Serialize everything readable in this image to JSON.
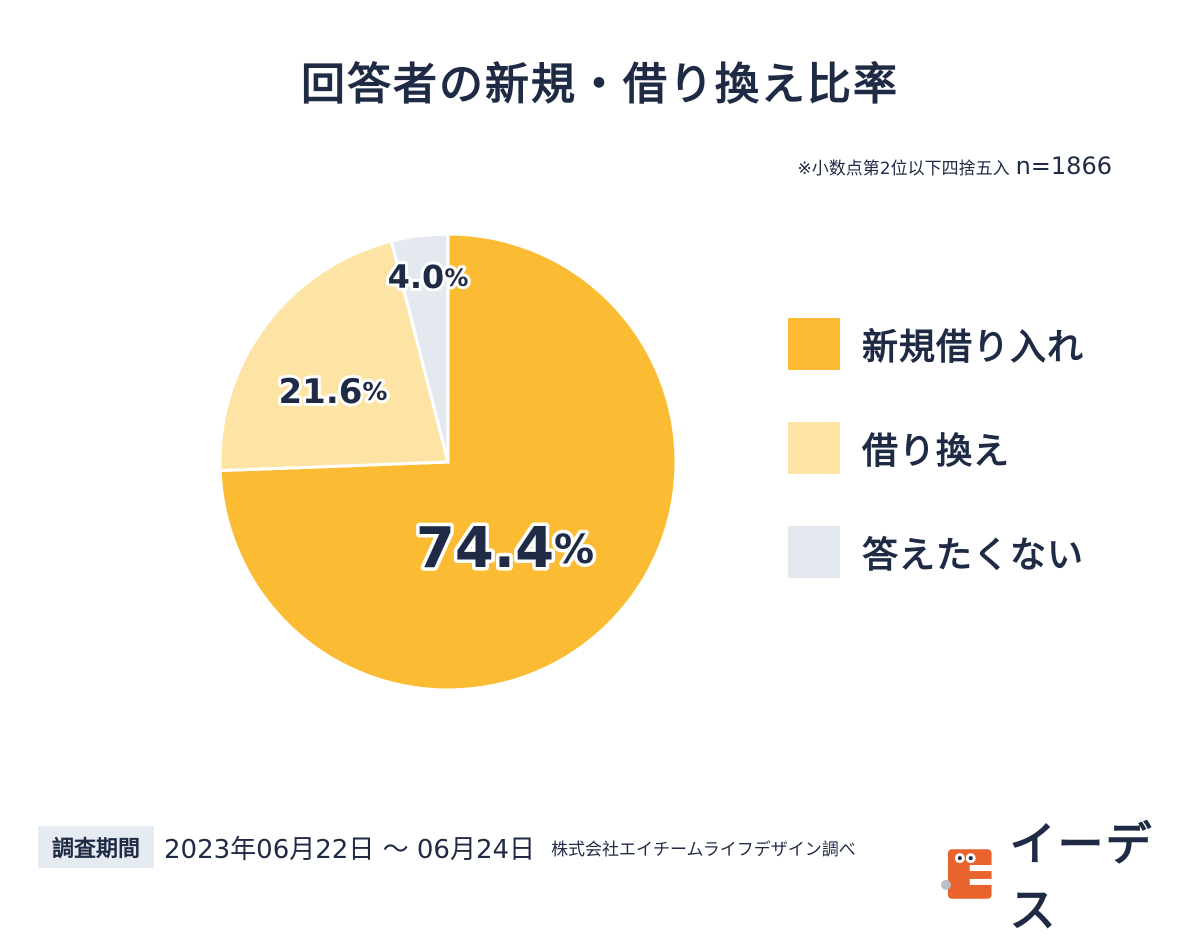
{
  "header": {
    "title": "回答者の新規・借り換え比率",
    "note": "※小数点第2位以下四捨五入",
    "sample": "n=1866"
  },
  "chart_data": {
    "type": "pie",
    "title": "回答者の新規・借り換え比率",
    "categories": [
      "新規借り入れ",
      "借り換え",
      "答えたくない"
    ],
    "values": [
      74.4,
      21.6,
      4.0
    ],
    "value_labels": [
      "74.4",
      "21.6",
      "4.0"
    ],
    "unit": "%",
    "colors": [
      "#fbbc34",
      "#fde4a4",
      "#e4e9f0"
    ],
    "start": "12 o'clock, clockwise",
    "legend": "right"
  },
  "legend": {
    "items": [
      {
        "label": "新規借り入れ",
        "color": "#fbbc34"
      },
      {
        "label": "借り換え",
        "color": "#fde4a4"
      },
      {
        "label": "答えたくない",
        "color": "#e4e9f0"
      }
    ]
  },
  "footer": {
    "period_label": "調査期間",
    "period": "2023年06月22日 〜 06月24日",
    "surveyor": "株式会社エイチームライフデザイン調べ"
  },
  "brand": {
    "name": "イーデス",
    "logo_icon": "e-mascot-logo-icon",
    "logo_color": "#e8642c"
  }
}
